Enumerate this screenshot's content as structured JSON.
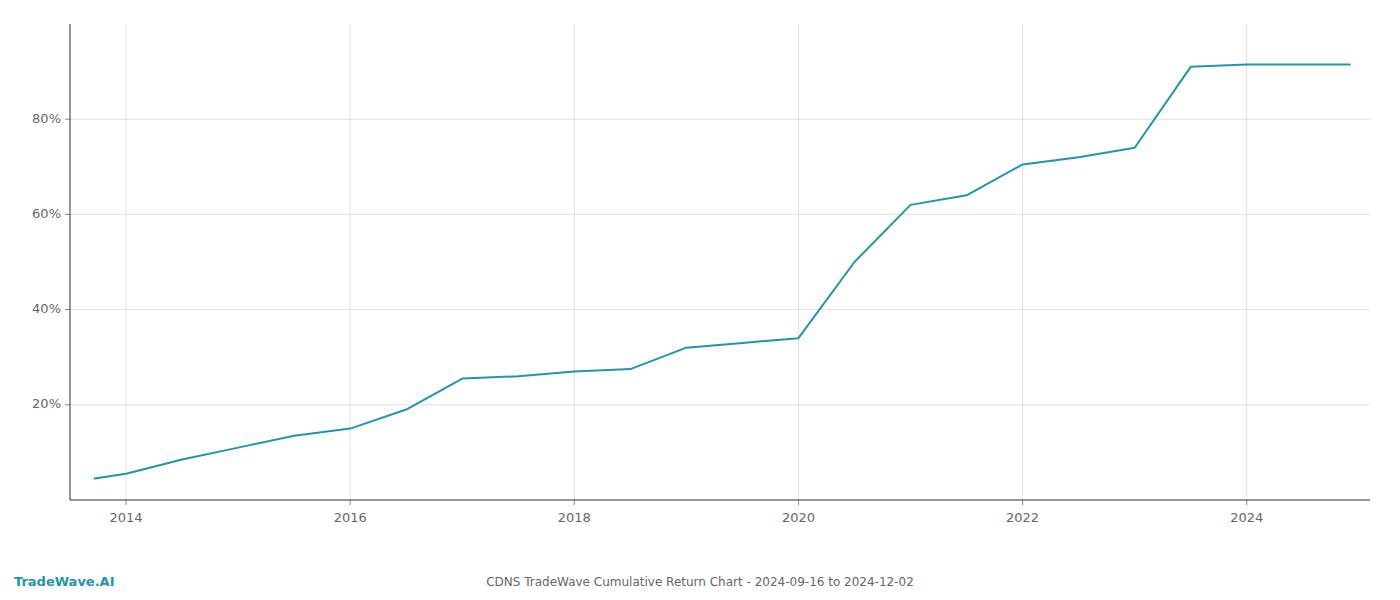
{
  "chart_data": {
    "type": "line",
    "title": "CDNS TradeWave Cumulative Return Chart - 2024-09-16 to 2024-12-02",
    "annotations": [
      "TradeWave.AI"
    ],
    "color": "#2196a8",
    "x": [
      2013.72,
      2014.0,
      2014.5,
      2015.0,
      2015.5,
      2016.0,
      2016.5,
      2017.0,
      2017.5,
      2018.0,
      2018.5,
      2019.0,
      2019.5,
      2020.0,
      2020.5,
      2021.0,
      2021.5,
      2022.0,
      2022.5,
      2023.0,
      2023.5,
      2024.0,
      2024.5,
      2024.92
    ],
    "values": [
      4.5,
      5.5,
      8.5,
      11.0,
      13.5,
      15.0,
      19.0,
      25.5,
      26.0,
      27.0,
      27.5,
      32.0,
      33.0,
      34.0,
      50.0,
      62.0,
      64.0,
      70.5,
      72.0,
      74.0,
      91.0,
      91.5,
      91.5,
      91.5
    ],
    "xlim": [
      2013.5,
      2025.1
    ],
    "ylim": [
      0,
      100
    ],
    "xticks": [
      2014,
      2016,
      2018,
      2020,
      2022,
      2024
    ],
    "yticks": [
      {
        "value": 20,
        "label": "20%"
      },
      {
        "value": 40,
        "label": "40%"
      },
      {
        "value": 60,
        "label": "60%"
      },
      {
        "value": 80,
        "label": "80%"
      }
    ],
    "grid": true
  }
}
